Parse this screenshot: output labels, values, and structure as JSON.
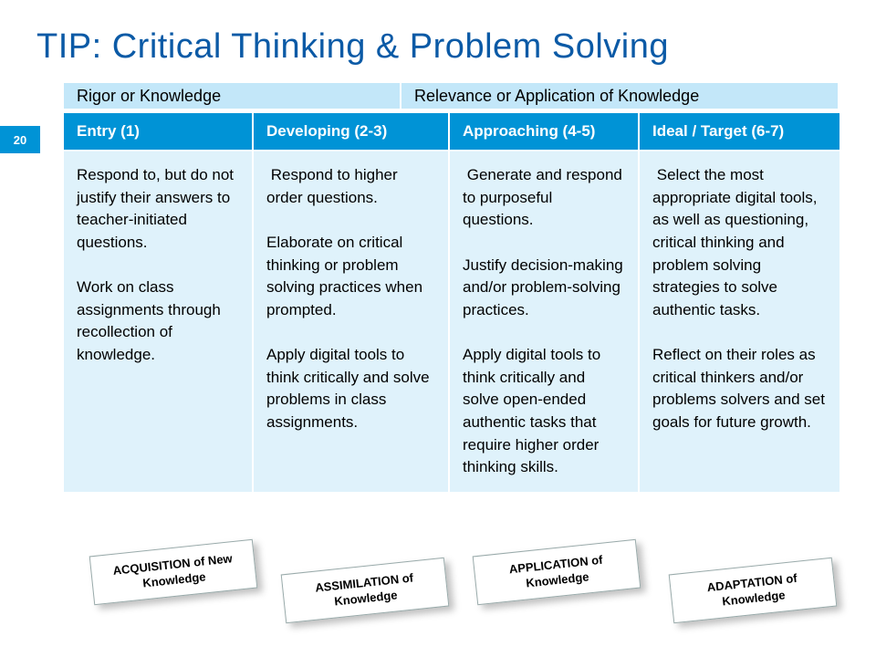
{
  "slide": {
    "title": "TIP: Critical Thinking & Problem Solving",
    "page_number": "20",
    "subheaders": {
      "left": "Rigor or Knowledge",
      "right": "Relevance or Application of Knowledge"
    },
    "columns": [
      {
        "header": "Entry (1)",
        "body": "Respond to, but do not justify their answers to teacher-initiated questions.\n\nWork on class assignments through recollection of knowledge."
      },
      {
        "header": "Developing (2-3)",
        "body": " Respond to higher order questions.\n\nElaborate on critical thinking or problem solving practices when prompted.\n\nApply digital tools to think critically and solve problems in class assignments."
      },
      {
        "header": "Approaching (4-5)",
        "body": " Generate and respond to purposeful questions.\n\nJustify decision-making and/or problem-solving practices.\n\nApply digital tools to think critically and solve open-ended authentic tasks that require higher order thinking skills."
      },
      {
        "header": "Ideal / Target (6-7)",
        "body": " Select the most appropriate digital tools, as well as questioning, critical thinking and problem solving strategies to solve authentic tasks.\n\nReflect on their roles as critical thinkers and/or problems solvers and set goals for future growth."
      }
    ],
    "callouts": [
      "ACQUISITION of New Knowledge",
      "ASSIMILATION of Knowledge",
      "APPLICATION of Knowledge",
      "ADAPTATION of Knowledge"
    ],
    "colors": {
      "title_color": "#0b5aa6",
      "accent": "#0093d6",
      "sub_bg": "#c3e7f9",
      "body_bg": "#dff2fb",
      "white": "#ffffff"
    }
  }
}
